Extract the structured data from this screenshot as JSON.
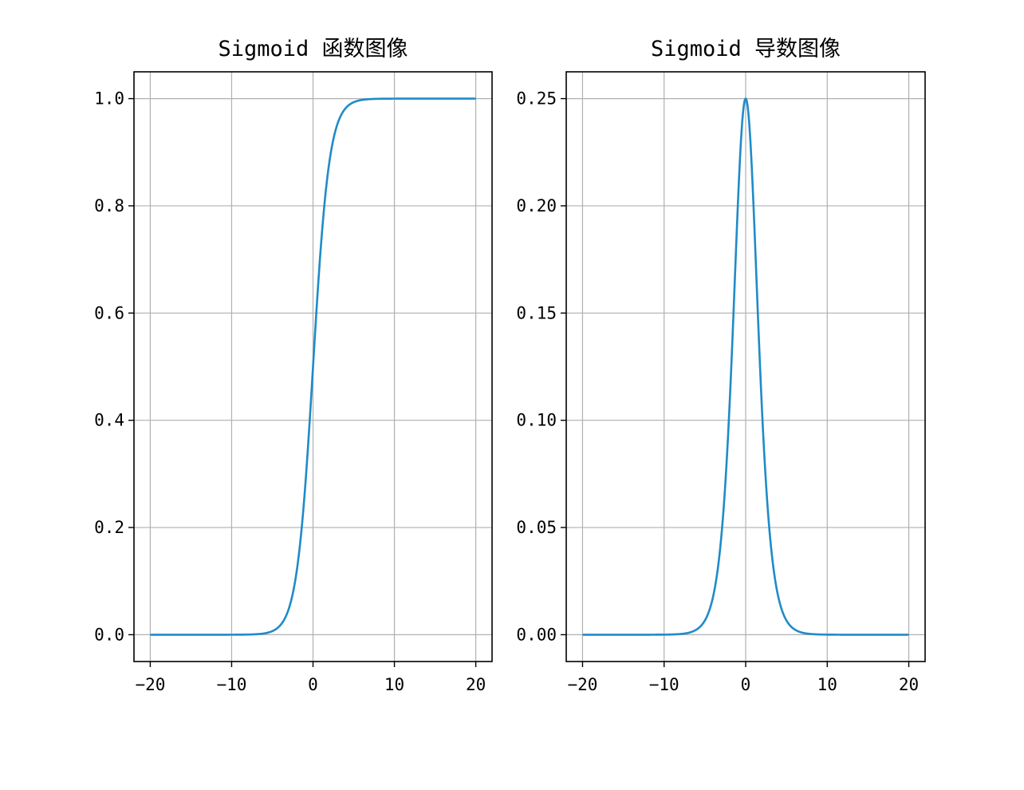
{
  "chart_data": [
    {
      "type": "line",
      "title": "Sigmoid 函数图像",
      "xlabel": "",
      "ylabel": "",
      "xlim": [
        -22,
        22
      ],
      "ylim": [
        -0.05,
        1.05
      ],
      "xticks": [
        -20,
        -10,
        0,
        10,
        20
      ],
      "xtick_labels": [
        "−20",
        "−10",
        "0",
        "10",
        "20"
      ],
      "yticks": [
        0.0,
        0.2,
        0.4,
        0.6,
        0.8,
        1.0
      ],
      "ytick_labels": [
        "0.0",
        "0.2",
        "0.4",
        "0.6",
        "0.8",
        "1.0"
      ],
      "grid": true,
      "series": [
        {
          "color": "#1f8bc8",
          "function": "sigmoid",
          "x_range": [
            -20,
            20
          ],
          "samples": [
            {
              "x": -20,
              "y": 0.0
            },
            {
              "x": -10,
              "y": 0.0
            },
            {
              "x": -5,
              "y": 0.007
            },
            {
              "x": -2,
              "y": 0.119
            },
            {
              "x": 0,
              "y": 0.5
            },
            {
              "x": 2,
              "y": 0.881
            },
            {
              "x": 5,
              "y": 0.993
            },
            {
              "x": 10,
              "y": 1.0
            },
            {
              "x": 20,
              "y": 1.0
            }
          ]
        }
      ]
    },
    {
      "type": "line",
      "title": "Sigmoid 导数图像",
      "xlabel": "",
      "ylabel": "",
      "xlim": [
        -22,
        22
      ],
      "ylim": [
        -0.0125,
        0.2625
      ],
      "xticks": [
        -20,
        -10,
        0,
        10,
        20
      ],
      "xtick_labels": [
        "−20",
        "−10",
        "0",
        "10",
        "20"
      ],
      "yticks": [
        0.0,
        0.05,
        0.1,
        0.15,
        0.2,
        0.25
      ],
      "ytick_labels": [
        "0.00",
        "0.05",
        "0.10",
        "0.15",
        "0.20",
        "0.25"
      ],
      "grid": true,
      "series": [
        {
          "color": "#1f8bc8",
          "function": "sigmoid_derivative",
          "x_range": [
            -20,
            20
          ],
          "samples": [
            {
              "x": -20,
              "y": 0.0
            },
            {
              "x": -10,
              "y": 0.0
            },
            {
              "x": -5,
              "y": 0.0066
            },
            {
              "x": -2,
              "y": 0.105
            },
            {
              "x": 0,
              "y": 0.25
            },
            {
              "x": 2,
              "y": 0.105
            },
            {
              "x": 5,
              "y": 0.0066
            },
            {
              "x": 10,
              "y": 0.0
            },
            {
              "x": 20,
              "y": 0.0
            }
          ]
        }
      ]
    }
  ]
}
